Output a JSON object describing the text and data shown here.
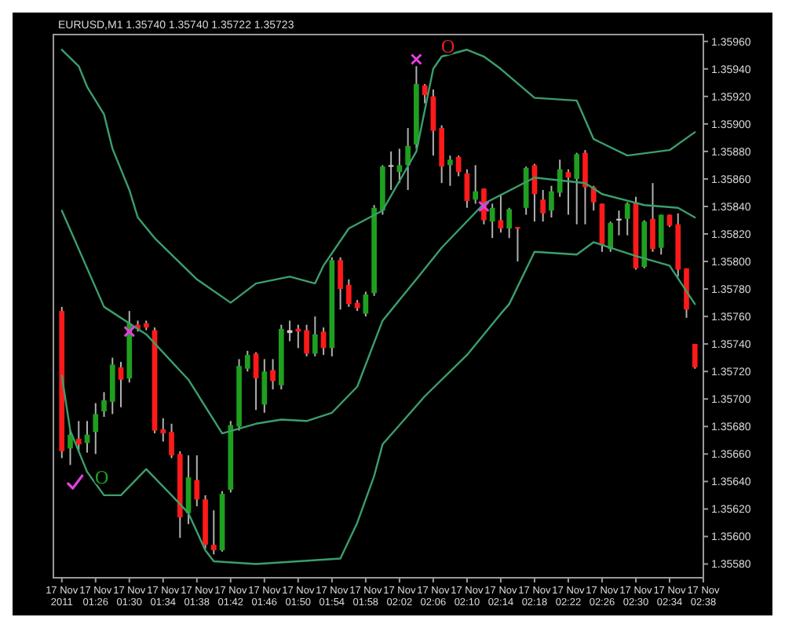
{
  "chart_data": {
    "type": "candlestick",
    "title": "EURUSD,M1  1.35740 1.35740 1.35722 1.35723",
    "x": [
      "2011-11-17T01:22",
      "2011-11-17T01:23",
      "2011-11-17T01:24",
      "2011-11-17T01:25",
      "2011-11-17T01:26",
      "2011-11-17T01:27",
      "2011-11-17T01:28",
      "2011-11-17T01:29",
      "2011-11-17T01:30",
      "2011-11-17T01:31",
      "2011-11-17T01:32",
      "2011-11-17T01:33",
      "2011-11-17T01:34",
      "2011-11-17T01:35",
      "2011-11-17T01:36",
      "2011-11-17T01:37",
      "2011-11-17T01:38",
      "2011-11-17T01:39",
      "2011-11-17T01:40",
      "2011-11-17T01:41",
      "2011-11-17T01:42",
      "2011-11-17T01:43",
      "2011-11-17T01:44",
      "2011-11-17T01:45",
      "2011-11-17T01:46",
      "2011-11-17T01:47",
      "2011-11-17T01:48",
      "2011-11-17T01:49",
      "2011-11-17T01:50",
      "2011-11-17T01:51",
      "2011-11-17T01:52",
      "2011-11-17T01:53",
      "2011-11-17T01:54",
      "2011-11-17T01:55",
      "2011-11-17T01:56",
      "2011-11-17T01:57",
      "2011-11-17T01:58",
      "2011-11-17T01:59",
      "2011-11-17T02:00",
      "2011-11-17T02:01",
      "2011-11-17T02:02",
      "2011-11-17T02:03",
      "2011-11-17T02:04",
      "2011-11-17T02:05",
      "2011-11-17T02:06",
      "2011-11-17T02:07",
      "2011-11-17T02:08",
      "2011-11-17T02:09",
      "2011-11-17T02:10",
      "2011-11-17T02:11",
      "2011-11-17T02:12",
      "2011-11-17T02:13",
      "2011-11-17T02:14",
      "2011-11-17T02:15",
      "2011-11-17T02:16",
      "2011-11-17T02:17",
      "2011-11-17T02:18",
      "2011-11-17T02:19",
      "2011-11-17T02:20",
      "2011-11-17T02:21",
      "2011-11-17T02:22",
      "2011-11-17T02:23",
      "2011-11-17T02:24",
      "2011-11-17T02:25",
      "2011-11-17T02:26",
      "2011-11-17T02:27",
      "2011-11-17T02:28",
      "2011-11-17T02:29",
      "2011-11-17T02:30",
      "2011-11-17T02:31",
      "2011-11-17T02:32",
      "2011-11-17T02:33",
      "2011-11-17T02:34",
      "2011-11-17T02:35",
      "2011-11-17T02:36",
      "2011-11-17T02:37"
    ],
    "ohlc": [
      [
        1.35764,
        1.35767,
        1.35657,
        1.35662
      ],
      [
        1.35664,
        1.35677,
        1.35652,
        1.35674
      ],
      [
        1.35671,
        1.35684,
        1.35662,
        1.35667
      ],
      [
        1.35668,
        1.35684,
        1.35661,
        1.35674
      ],
      [
        1.35676,
        1.35697,
        1.3566,
        1.35689
      ],
      [
        1.35691,
        1.35705,
        1.35687,
        1.35699
      ],
      [
        1.35698,
        1.3573,
        1.35689,
        1.35725
      ],
      [
        1.35723,
        1.35727,
        1.35694,
        1.35714
      ],
      [
        1.35715,
        1.35764,
        1.35712,
        1.35755
      ],
      [
        1.35754,
        1.35757,
        1.35749,
        1.35751
      ],
      [
        1.35755,
        1.35757,
        1.3575,
        1.35752
      ],
      [
        1.3575,
        1.35752,
        1.35675,
        1.35677
      ],
      [
        1.35678,
        1.35686,
        1.35669,
        1.35675
      ],
      [
        1.35676,
        1.35682,
        1.35657,
        1.35659
      ],
      [
        1.3566,
        1.35662,
        1.35599,
        1.35614
      ],
      [
        1.35617,
        1.35659,
        1.35609,
        1.35643
      ],
      [
        1.35641,
        1.35659,
        1.35622,
        1.35627
      ],
      [
        1.35627,
        1.3563,
        1.35591,
        1.35594
      ],
      [
        1.35594,
        1.35619,
        1.35587,
        1.3559
      ],
      [
        1.3559,
        1.35633,
        1.35589,
        1.35631
      ],
      [
        1.35634,
        1.35684,
        1.35632,
        1.35681
      ],
      [
        1.3568,
        1.35729,
        1.35677,
        1.35724
      ],
      [
        1.35722,
        1.35735,
        1.3572,
        1.35732
      ],
      [
        1.35733,
        1.35734,
        1.35692,
        1.35715
      ],
      [
        1.35696,
        1.35729,
        1.3569,
        1.3572
      ],
      [
        1.35721,
        1.35729,
        1.35707,
        1.35713
      ],
      [
        1.3571,
        1.35754,
        1.35707,
        1.35751
      ],
      [
        1.35748,
        1.35757,
        1.35742,
        1.3575
      ],
      [
        1.35751,
        1.35754,
        1.35737,
        1.35749
      ],
      [
        1.3575,
        1.35754,
        1.35731,
        1.35733
      ],
      [
        1.35733,
        1.3576,
        1.35731,
        1.35747
      ],
      [
        1.35749,
        1.35752,
        1.35732,
        1.35737
      ],
      [
        1.35737,
        1.35803,
        1.35731,
        1.35801
      ],
      [
        1.35801,
        1.35803,
        1.35765,
        1.3578
      ],
      [
        1.35783,
        1.35787,
        1.35767,
        1.35769
      ],
      [
        1.3577,
        1.35772,
        1.35764,
        1.35766
      ],
      [
        1.35762,
        1.35778,
        1.3576,
        1.35776
      ],
      [
        1.35777,
        1.35841,
        1.35775,
        1.35839
      ],
      [
        1.35837,
        1.3587,
        1.35834,
        1.35869
      ],
      [
        1.35869,
        1.3588,
        1.35852,
        1.3587
      ],
      [
        1.35865,
        1.35882,
        1.35857,
        1.3587
      ],
      [
        1.3587,
        1.35897,
        1.35852,
        1.35884
      ],
      [
        1.35885,
        1.35942,
        1.35882,
        1.35929
      ],
      [
        1.35928,
        1.35929,
        1.35915,
        1.35921
      ],
      [
        1.3592,
        1.35925,
        1.35877,
        1.35895
      ],
      [
        1.35897,
        1.35899,
        1.35857,
        1.35869
      ],
      [
        1.3587,
        1.35877,
        1.35855,
        1.35874
      ],
      [
        1.35876,
        1.35877,
        1.35862,
        1.35865
      ],
      [
        1.35864,
        1.35867,
        1.35839,
        1.35844
      ],
      [
        1.35845,
        1.3587,
        1.35842,
        1.35851
      ],
      [
        1.35853,
        1.35853,
        1.35827,
        1.3583
      ],
      [
        1.35829,
        1.35842,
        1.35817,
        1.35839
      ],
      [
        1.3583,
        1.35849,
        1.35821,
        1.35824
      ],
      [
        1.35824,
        1.35839,
        1.35817,
        1.35838
      ],
      [
        1.35825,
        1.35825,
        1.358,
        1.35824
      ],
      [
        1.35839,
        1.35869,
        1.35834,
        1.35868
      ],
      [
        1.3587,
        1.35871,
        1.35829,
        1.35849
      ],
      [
        1.35845,
        1.35852,
        1.35829,
        1.35835
      ],
      [
        1.35837,
        1.35855,
        1.35832,
        1.35851
      ],
      [
        1.3585,
        1.35874,
        1.35847,
        1.35867
      ],
      [
        1.35865,
        1.35867,
        1.35834,
        1.35861
      ],
      [
        1.3586,
        1.35879,
        1.35827,
        1.35878
      ],
      [
        1.35879,
        1.35881,
        1.35827,
        1.35854
      ],
      [
        1.35854,
        1.35855,
        1.35837,
        1.35843
      ],
      [
        1.35842,
        1.35842,
        1.35807,
        1.35812
      ],
      [
        1.35809,
        1.35829,
        1.35807,
        1.35828
      ],
      [
        1.35831,
        1.35837,
        1.35819,
        1.35831
      ],
      [
        1.35831,
        1.35843,
        1.35819,
        1.35842
      ],
      [
        1.35843,
        1.35847,
        1.35794,
        1.35795
      ],
      [
        1.35796,
        1.3583,
        1.35795,
        1.35829
      ],
      [
        1.35831,
        1.35857,
        1.35807,
        1.35809
      ],
      [
        1.3581,
        1.35834,
        1.35805,
        1.35834
      ],
      [
        1.35834,
        1.35834,
        1.35825,
        1.35826
      ],
      [
        1.35827,
        1.35835,
        1.35789,
        1.35794
      ],
      [
        1.35795,
        1.35795,
        1.35759,
        1.35765
      ],
      [
        1.3574,
        1.3574,
        1.35722,
        1.35723
      ]
    ],
    "colors": [
      "#ff1a1a",
      "#1f9f1f",
      "#ff1a1a",
      "#1f9f1f",
      "#1f9f1f",
      "#1f9f1f",
      "#1f9f1f",
      "#ff1a1a",
      "#1f9f1f",
      "#ff1a1a",
      "#ff1a1a",
      "#ff1a1a",
      "#ff1a1a",
      "#ff1a1a",
      "#ff1a1a",
      "#1f9f1f",
      "#ff1a1a",
      "#ff1a1a",
      "#ff1a1a",
      "#1f9f1f",
      "#1f9f1f",
      "#1f9f1f",
      "#1f9f1f",
      "#ff1a1a",
      "#1f9f1f",
      "#ff1a1a",
      "#1f9f1f",
      "#d0d0d0",
      "#ff1a1a",
      "#ff1a1a",
      "#1f9f1f",
      "#ff1a1a",
      "#1f9f1f",
      "#ff1a1a",
      "#ff1a1a",
      "#ff1a1a",
      "#1f9f1f",
      "#1f9f1f",
      "#1f9f1f",
      "#d0d0d0",
      "#1f9f1f",
      "#1f9f1f",
      "#1f9f1f",
      "#ff1a1a",
      "#ff1a1a",
      "#ff1a1a",
      "#1f9f1f",
      "#ff1a1a",
      "#ff1a1a",
      "#1f9f1f",
      "#ff1a1a",
      "#1f9f1f",
      "#ff1a1a",
      "#1f9f1f",
      "#ff1a1a",
      "#1f9f1f",
      "#ff1a1a",
      "#ff1a1a",
      "#1f9f1f",
      "#1f9f1f",
      "#ff1a1a",
      "#1f9f1f",
      "#ff1a1a",
      "#ff1a1a",
      "#ff1a1a",
      "#1f9f1f",
      "#d0d0d0",
      "#1f9f1f",
      "#ff1a1a",
      "#1f9f1f",
      "#ff1a1a",
      "#1f9f1f",
      "#ff1a1a",
      "#ff1a1a",
      "#ff1a1a",
      "#ff1a1a"
    ],
    "series": [
      {
        "type": "line",
        "color": "#3c9e6c",
        "x": [
          "2011-11-17T01:22",
          "2011-11-17T01:24",
          "2011-11-17T01:25",
          "2011-11-17T01:27",
          "2011-11-17T01:28",
          "2011-11-17T01:30",
          "2011-11-17T01:31",
          "2011-11-17T01:33",
          "2011-11-17T01:35",
          "2011-11-17T01:38",
          "2011-11-17T01:42",
          "2011-11-17T01:45",
          "2011-11-17T01:49",
          "2011-11-17T01:52",
          "2011-11-17T01:53",
          "2011-11-17T01:56",
          "2011-11-17T02:00",
          "2011-11-17T02:04",
          "2011-11-17T02:06",
          "2011-11-17T02:07",
          "2011-11-17T02:10",
          "2011-11-17T02:12",
          "2011-11-17T02:14",
          "2011-11-17T02:18",
          "2011-11-17T02:23",
          "2011-11-17T02:25",
          "2011-11-17T02:29",
          "2011-11-17T02:34",
          "2011-11-17T02:37"
        ],
        "values": [
          1.35954,
          1.35942,
          1.35927,
          1.35907,
          1.35882,
          1.35852,
          1.35832,
          1.35817,
          1.35805,
          1.35787,
          1.3577,
          1.35784,
          1.35789,
          1.35784,
          1.35797,
          1.35824,
          1.35837,
          1.3588,
          1.3594,
          1.35949,
          1.35954,
          1.35949,
          1.3594,
          1.35919,
          1.35917,
          1.35889,
          1.35877,
          1.35881,
          1.35894
        ]
      },
      {
        "type": "line",
        "color": "#3c9e6c",
        "x": [
          "2011-11-17T01:22",
          "2011-11-17T01:27",
          "2011-11-17T01:32",
          "2011-11-17T01:37",
          "2011-11-17T01:41",
          "2011-11-17T01:45",
          "2011-11-17T01:48",
          "2011-11-17T01:51",
          "2011-11-17T01:54",
          "2011-11-17T01:57",
          "2011-11-17T02:00",
          "2011-11-17T02:04",
          "2011-11-17T02:07",
          "2011-11-17T02:12",
          "2011-11-17T02:18",
          "2011-11-17T02:24",
          "2011-11-17T02:26",
          "2011-11-17T02:31",
          "2011-11-17T02:35",
          "2011-11-17T02:37"
        ],
        "values": [
          1.35837,
          1.35767,
          1.35747,
          1.35714,
          1.35675,
          1.35682,
          1.35685,
          1.35684,
          1.3569,
          1.35709,
          1.35757,
          1.35787,
          1.3581,
          1.35842,
          1.35861,
          1.35857,
          1.35849,
          1.35841,
          1.35839,
          1.35832
        ]
      },
      {
        "type": "line",
        "color": "#3c9e6c",
        "x": [
          "2011-11-17T01:22",
          "2011-11-17T01:23",
          "2011-11-17T01:25",
          "2011-11-17T01:27",
          "2011-11-17T01:29",
          "2011-11-17T01:32",
          "2011-11-17T01:35",
          "2011-11-17T01:37",
          "2011-11-17T01:39",
          "2011-11-17T01:40",
          "2011-11-17T01:45",
          "2011-11-17T01:50",
          "2011-11-17T01:55",
          "2011-11-17T01:57",
          "2011-11-17T01:59",
          "2011-11-17T02:00",
          "2011-11-17T02:05",
          "2011-11-17T02:10",
          "2011-11-17T02:14",
          "2011-11-17T02:15",
          "2011-11-17T02:18",
          "2011-11-17T02:23",
          "2011-11-17T02:25",
          "2011-11-17T02:30",
          "2011-11-17T02:34",
          "2011-11-17T02:37"
        ],
        "values": [
          1.35717,
          1.35677,
          1.35647,
          1.3563,
          1.3563,
          1.35649,
          1.3563,
          1.35617,
          1.3559,
          1.35582,
          1.3558,
          1.35582,
          1.35584,
          1.3561,
          1.35644,
          1.35667,
          1.35702,
          1.35732,
          1.35762,
          1.35769,
          1.35807,
          1.35805,
          1.35814,
          1.35804,
          1.35797,
          1.35769
        ]
      },
      {
        "type": "scatter",
        "color": "#e040e0",
        "marker": "cross",
        "x": [
          "2011-11-17T01:30",
          "2011-11-17T02:04",
          "2011-11-17T02:12"
        ],
        "values": [
          1.35749,
          1.35947,
          1.3584
        ]
      }
    ],
    "annotations": [
      {
        "text": "O",
        "x": "2011-11-17T01:26",
        "y": 1.35639
      },
      {
        "text": "O",
        "x": "2011-11-17T02:07",
        "y": 1.35952
      }
    ],
    "xlim": [
      "2011-11-17T01:21",
      "2011-11-17T02:38"
    ],
    "xticks": [
      {
        "value": "2011-11-17T01:22",
        "label": "17 Nov 2011"
      },
      {
        "value": "2011-11-17T01:26",
        "label": "17 Nov 01:26"
      },
      {
        "value": "2011-11-17T01:30",
        "label": "17 Nov 01:30"
      },
      {
        "value": "2011-11-17T01:34",
        "label": "17 Nov 01:34"
      },
      {
        "value": "2011-11-17T01:38",
        "label": "17 Nov 01:38"
      },
      {
        "value": "2011-11-17T01:42",
        "label": "17 Nov 01:42"
      },
      {
        "value": "2011-11-17T01:46",
        "label": "17 Nov 01:46"
      },
      {
        "value": "2011-11-17T01:50",
        "label": "17 Nov 01:50"
      },
      {
        "value": "2011-11-17T01:54",
        "label": "17 Nov 01:54"
      },
      {
        "value": "2011-11-17T01:58",
        "label": "17 Nov 01:58"
      },
      {
        "value": "2011-11-17T02:02",
        "label": "17 Nov 02:02"
      },
      {
        "value": "2011-11-17T02:06",
        "label": "17 Nov 02:06"
      },
      {
        "value": "2011-11-17T02:10",
        "label": "17 Nov 02:10"
      },
      {
        "value": "2011-11-17T02:14",
        "label": "17 Nov 02:14"
      },
      {
        "value": "2011-11-17T02:18",
        "label": "17 Nov 02:18"
      },
      {
        "value": "2011-11-17T02:22",
        "label": "17 Nov 02:22"
      },
      {
        "value": "2011-11-17T02:26",
        "label": "17 Nov 02:26"
      },
      {
        "value": "2011-11-17T02:30",
        "label": "17 Nov 02:30"
      },
      {
        "value": "2011-11-17T02:34",
        "label": "17 Nov 02:34"
      },
      {
        "value": "2011-11-17T02:38",
        "label": "17 Nov 02:38"
      }
    ],
    "ylim": [
      1.3557,
      1.35965
    ],
    "yticks": [
      {
        "value": 1.3596,
        "label": "1.35960"
      },
      {
        "value": 1.3594,
        "label": "1.35940"
      },
      {
        "value": 1.3592,
        "label": "1.35920"
      },
      {
        "value": 1.359,
        "label": "1.35900"
      },
      {
        "value": 1.3588,
        "label": "1.35880"
      },
      {
        "value": 1.3586,
        "label": "1.35860"
      },
      {
        "value": 1.3584,
        "label": "1.35840"
      },
      {
        "value": 1.3582,
        "label": "1.35820"
      },
      {
        "value": 1.358,
        "label": "1.35800"
      },
      {
        "value": 1.3578,
        "label": "1.35780"
      },
      {
        "value": 1.3576,
        "label": "1.35760"
      },
      {
        "value": 1.3574,
        "label": "1.35740"
      },
      {
        "value": 1.3572,
        "label": "1.35720"
      },
      {
        "value": 1.357,
        "label": "1.35700"
      },
      {
        "value": 1.3568,
        "label": "1.35680"
      },
      {
        "value": 1.3566,
        "label": "1.35660"
      },
      {
        "value": 1.3564,
        "label": "1.35640"
      },
      {
        "value": 1.3562,
        "label": "1.35620"
      },
      {
        "value": 1.356,
        "label": "1.35600"
      },
      {
        "value": 1.3558,
        "label": "1.35580"
      }
    ]
  }
}
